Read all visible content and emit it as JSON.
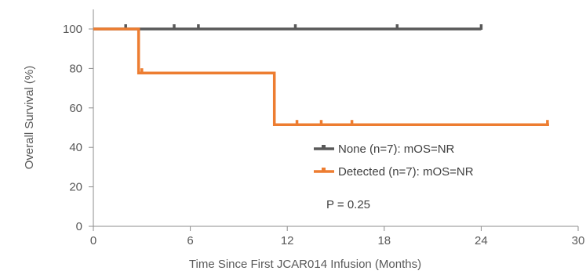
{
  "chart_data": {
    "type": "line",
    "step": true,
    "xlabel": "Time Since First JCAR014 Infusion (Months)",
    "ylabel": "Overall Survival (%)",
    "xlim": [
      0,
      30
    ],
    "ylim": [
      0,
      100
    ],
    "xticks": [
      0,
      6,
      12,
      18,
      24,
      30
    ],
    "yticks": [
      0,
      20,
      40,
      60,
      80,
      100
    ],
    "grid": false,
    "legend_position": "center-right",
    "series": [
      {
        "name": "None (n=7): mOS=NR",
        "color": "#595959",
        "x": [
          0,
          24
        ],
        "y": [
          100,
          100
        ],
        "censored": [
          [
            2.0,
            100
          ],
          [
            5.0,
            100
          ],
          [
            6.5,
            100
          ],
          [
            12.5,
            100
          ],
          [
            18.8,
            100
          ],
          [
            24.0,
            100
          ]
        ]
      },
      {
        "name": "Detected (n=7): mOS=NR",
        "color": "#ED7D31",
        "x": [
          0,
          2.8,
          2.8,
          11.2,
          11.2,
          28.2
        ],
        "y": [
          100,
          100,
          77.7,
          77.7,
          51.5,
          51.5
        ],
        "censored": [
          [
            3.0,
            77.7
          ],
          [
            12.6,
            51.5
          ],
          [
            14.1,
            51.5
          ],
          [
            16.0,
            51.5
          ],
          [
            28.1,
            51.5
          ]
        ]
      }
    ],
    "annotations": [
      "P = 0.25"
    ]
  }
}
